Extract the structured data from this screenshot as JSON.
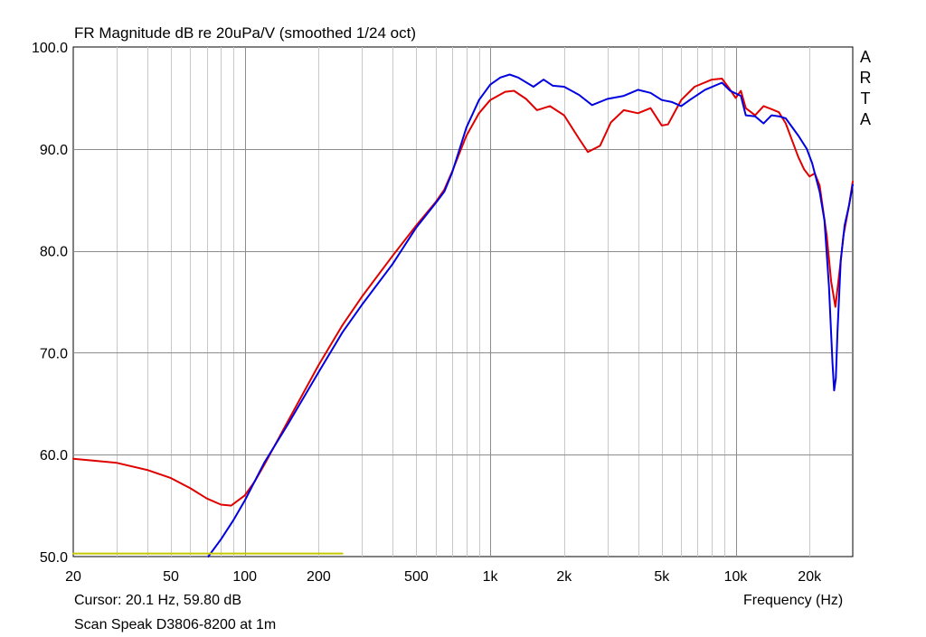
{
  "chart_data": {
    "type": "line",
    "title": "FR Magnitude dB re 20uPa/V (smoothed 1/24 oct)",
    "xlabel": "Frequency (Hz)",
    "ylabel": "",
    "xscale": "log",
    "xlim": [
      20,
      30000
    ],
    "ylim": [
      50,
      100
    ],
    "grid": true,
    "x_ticks": [
      {
        "value": 20,
        "label": "20"
      },
      {
        "value": 50,
        "label": "50"
      },
      {
        "value": 100,
        "label": "100"
      },
      {
        "value": 200,
        "label": "200"
      },
      {
        "value": 500,
        "label": "500"
      },
      {
        "value": 1000,
        "label": "1k"
      },
      {
        "value": 2000,
        "label": "2k"
      },
      {
        "value": 5000,
        "label": "5k"
      },
      {
        "value": 10000,
        "label": "10k"
      },
      {
        "value": 20000,
        "label": "20k"
      }
    ],
    "y_ticks": [
      {
        "value": 50,
        "label": "50.0"
      },
      {
        "value": 60,
        "label": "60.0"
      },
      {
        "value": 70,
        "label": "70.0"
      },
      {
        "value": 80,
        "label": "80.0"
      },
      {
        "value": 90,
        "label": "90.0"
      },
      {
        "value": 100,
        "label": "100.0"
      }
    ],
    "series": [
      {
        "color": "#e00000",
        "points": [
          [
            20,
            59.6
          ],
          [
            30,
            59.2
          ],
          [
            40,
            58.5
          ],
          [
            50,
            57.7
          ],
          [
            60,
            56.7
          ],
          [
            70,
            55.7
          ],
          [
            80,
            55.1
          ],
          [
            88,
            55.0
          ],
          [
            100,
            56.0
          ],
          [
            110,
            57.4
          ],
          [
            120,
            59.0
          ],
          [
            150,
            63.3
          ],
          [
            200,
            68.8
          ],
          [
            250,
            72.7
          ],
          [
            300,
            75.5
          ],
          [
            400,
            79.5
          ],
          [
            500,
            82.5
          ],
          [
            600,
            84.8
          ],
          [
            650,
            86.0
          ],
          [
            700,
            87.8
          ],
          [
            800,
            91.3
          ],
          [
            900,
            93.5
          ],
          [
            1000,
            94.8
          ],
          [
            1150,
            95.6
          ],
          [
            1250,
            95.7
          ],
          [
            1400,
            94.9
          ],
          [
            1550,
            93.8
          ],
          [
            1750,
            94.2
          ],
          [
            2000,
            93.3
          ],
          [
            2300,
            91.0
          ],
          [
            2500,
            89.7
          ],
          [
            2800,
            90.3
          ],
          [
            3100,
            92.6
          ],
          [
            3500,
            93.8
          ],
          [
            4000,
            93.5
          ],
          [
            4500,
            94.0
          ],
          [
            5000,
            92.3
          ],
          [
            5300,
            92.4
          ],
          [
            6000,
            94.8
          ],
          [
            6800,
            96.1
          ],
          [
            8000,
            96.8
          ],
          [
            8800,
            96.9
          ],
          [
            9500,
            95.8
          ],
          [
            10000,
            95.0
          ],
          [
            10500,
            95.7
          ],
          [
            11000,
            94.0
          ],
          [
            12000,
            93.3
          ],
          [
            13000,
            94.2
          ],
          [
            14000,
            93.9
          ],
          [
            15000,
            93.6
          ],
          [
            16000,
            92.5
          ],
          [
            18000,
            89.2
          ],
          [
            19000,
            88.0
          ],
          [
            20000,
            87.3
          ],
          [
            21000,
            87.6
          ],
          [
            22000,
            86.4
          ],
          [
            23500,
            81.5
          ],
          [
            24500,
            77.0
          ],
          [
            25500,
            74.5
          ],
          [
            26500,
            78.0
          ],
          [
            27500,
            81.5
          ],
          [
            29000,
            84.5
          ],
          [
            30000,
            86.8
          ]
        ]
      },
      {
        "color": "#0000e0",
        "points": [
          [
            71,
            50.0
          ],
          [
            80,
            51.7
          ],
          [
            90,
            53.6
          ],
          [
            100,
            55.5
          ],
          [
            120,
            59.2
          ],
          [
            150,
            63.0
          ],
          [
            200,
            68.1
          ],
          [
            250,
            72.0
          ],
          [
            300,
            74.7
          ],
          [
            400,
            78.7
          ],
          [
            500,
            82.3
          ],
          [
            600,
            84.7
          ],
          [
            650,
            85.8
          ],
          [
            700,
            87.7
          ],
          [
            800,
            92.1
          ],
          [
            900,
            94.8
          ],
          [
            1000,
            96.3
          ],
          [
            1100,
            97.0
          ],
          [
            1200,
            97.3
          ],
          [
            1300,
            97.0
          ],
          [
            1500,
            96.1
          ],
          [
            1650,
            96.8
          ],
          [
            1800,
            96.2
          ],
          [
            2000,
            96.1
          ],
          [
            2300,
            95.3
          ],
          [
            2600,
            94.3
          ],
          [
            3000,
            94.9
          ],
          [
            3500,
            95.2
          ],
          [
            4000,
            95.8
          ],
          [
            4500,
            95.5
          ],
          [
            5000,
            94.8
          ],
          [
            5500,
            94.6
          ],
          [
            6000,
            94.2
          ],
          [
            6500,
            94.8
          ],
          [
            7500,
            95.8
          ],
          [
            8800,
            96.5
          ],
          [
            9500,
            95.7
          ],
          [
            10500,
            95.2
          ],
          [
            11000,
            93.3
          ],
          [
            12000,
            93.2
          ],
          [
            13000,
            92.5
          ],
          [
            14000,
            93.3
          ],
          [
            15000,
            93.2
          ],
          [
            16000,
            93.0
          ],
          [
            18000,
            91.3
          ],
          [
            19500,
            90.0
          ],
          [
            20500,
            88.6
          ],
          [
            22000,
            85.8
          ],
          [
            23000,
            83.0
          ],
          [
            24000,
            76.5
          ],
          [
            24800,
            69.0
          ],
          [
            25200,
            66.3
          ],
          [
            25600,
            67.5
          ],
          [
            26000,
            72.0
          ],
          [
            26800,
            79.0
          ],
          [
            27800,
            82.5
          ],
          [
            29000,
            84.5
          ],
          [
            30000,
            86.5
          ]
        ]
      },
      {
        "color": "#c8c800",
        "points": [
          [
            20,
            50.3
          ],
          [
            250,
            50.3
          ]
        ]
      }
    ]
  },
  "cursor_readout": "Cursor: 20.1 Hz, 59.80 dB",
  "note": "Scan Speak D3806-8200 at 1m",
  "watermark": "ARTA",
  "watermark_letters": [
    "A",
    "R",
    "T",
    "A"
  ]
}
